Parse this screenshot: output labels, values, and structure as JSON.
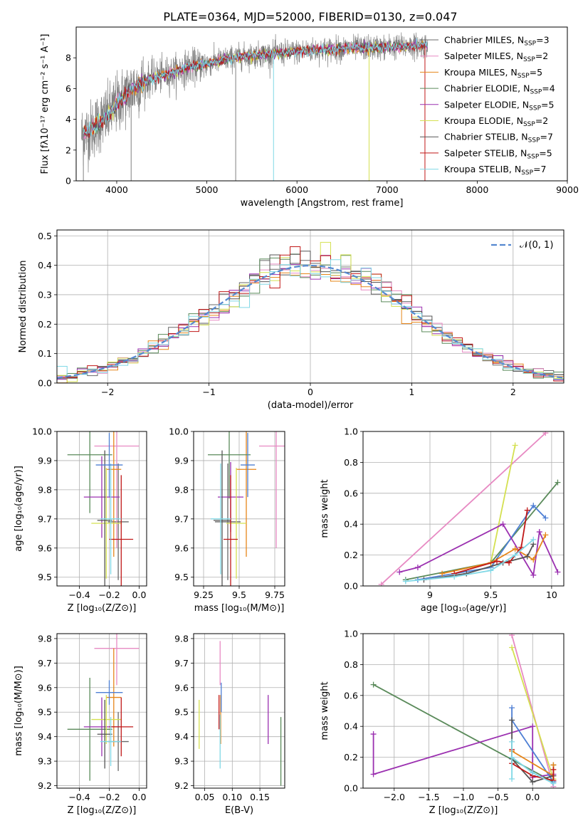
{
  "figure": {
    "title": "PLATE=0364, MJD=52000, FIBERID=0130, z=0.047"
  },
  "colors": {
    "c1": "#696969",
    "c2": "#e78ac3",
    "c3": "#e6861a",
    "c4": "#5a8a5a",
    "c5": "#9b30b0",
    "c6": "#d4e050",
    "c7": "#555555",
    "c8": "#c01818",
    "c9": "#80d8e6",
    "gray": "#808080",
    "norm": "#5588d0",
    "blue": "#4e7fd4"
  },
  "chart_data": [
    {
      "type": "line",
      "id": "spectrum",
      "xlabel": "wavelength [Angstrom, rest frame]",
      "ylabel": "Flux [fλ10⁻¹⁷ erg cm⁻² s⁻¹ A⁻¹]",
      "xlim": [
        3550,
        9000
      ],
      "ylim": [
        0,
        10
      ],
      "xticks": [
        4000,
        5000,
        6000,
        7000,
        8000,
        9000
      ],
      "yticks": [
        0,
        2,
        4,
        6,
        8
      ],
      "grid": false,
      "legend_position": "right",
      "continuum_x": [
        3600,
        3700,
        3800,
        3900,
        4000,
        4100,
        4200,
        4300,
        4400,
        4600,
        4800,
        5000,
        5200,
        5400,
        5600,
        5800,
        6000,
        6200,
        6500,
        6800,
        7000,
        7200,
        7400
      ],
      "continuum_y": [
        3.0,
        3.2,
        3.8,
        4.2,
        5.0,
        5.6,
        6.1,
        6.4,
        6.7,
        7.0,
        7.4,
        7.6,
        7.9,
        8.1,
        8.2,
        8.3,
        8.4,
        8.5,
        8.6,
        8.65,
        8.7,
        8.75,
        8.8
      ],
      "data_x_range": [
        3610,
        7450
      ],
      "legend": [
        {
          "label": "Chabrier MILES, N_SSP=3",
          "color": "c1"
        },
        {
          "label": "Salpeter MILES, N_SSP=2",
          "color": "c2"
        },
        {
          "label": "Kroupa MILES, N_SSP=5",
          "color": "c3"
        },
        {
          "label": "Chabrier ELODIE, N_SSP=4",
          "color": "c4"
        },
        {
          "label": "Salpeter ELODIE, N_SSP=5",
          "color": "c5"
        },
        {
          "label": "Kroupa ELODIE, N_SSP=2",
          "color": "c6"
        },
        {
          "label": "Chabrier STELIB, N_SSP=7",
          "color": "c7"
        },
        {
          "label": "Salpeter STELIB, N_SSP=5",
          "color": "c8"
        },
        {
          "label": "Kroupa STELIB, N_SSP=7",
          "color": "c9"
        }
      ]
    },
    {
      "type": "histogram",
      "id": "residuals",
      "xlabel": "(data-model)/error",
      "ylabel": "Normed distribution",
      "xlim": [
        -2.5,
        2.5
      ],
      "ylim": [
        0,
        0.52
      ],
      "xticks": [
        -2,
        -1,
        0,
        1,
        2
      ],
      "yticks": [
        0.0,
        0.1,
        0.2,
        0.3,
        0.4,
        0.5
      ],
      "grid": true,
      "legend": [
        {
          "label": "𝒩(0, 1)",
          "color": "norm"
        }
      ],
      "bin_width": 0.1,
      "series_colors": [
        "c1",
        "c2",
        "c3",
        "c4",
        "c5",
        "c6",
        "c7",
        "c8",
        "c9"
      ]
    },
    {
      "type": "errorbar",
      "id": "age_vs_Z",
      "xlabel": "Z [log₁₀(Z/Z⊙)]",
      "ylabel": "age  [log₁₀(age/yr)]",
      "xlim": [
        -0.55,
        0.05
      ],
      "ylim": [
        9.47,
        10.0
      ],
      "xticks": [
        -0.4,
        -0.2,
        0.0
      ],
      "xticklabels": [
        "−0.4",
        "−0.2",
        "0.0"
      ],
      "yticks": [
        9.5,
        9.6,
        9.7,
        9.8,
        9.9,
        10.0
      ],
      "grid": true,
      "points": [
        {
          "x": -0.14,
          "y": 9.69,
          "xerr": 0.07,
          "yerr": 0.2,
          "color": "c1"
        },
        {
          "x": -0.15,
          "y": 9.95,
          "xerr": 0.15,
          "yerr": 0.35,
          "color": "c2"
        },
        {
          "x": -0.17,
          "y": 9.87,
          "xerr": 0.05,
          "yerr": 0.3,
          "color": "c3"
        },
        {
          "x": -0.33,
          "y": 9.92,
          "xerr": 0.15,
          "yerr": 0.2,
          "color": "c4"
        },
        {
          "x": -0.25,
          "y": 9.775,
          "xerr": 0.12,
          "yerr": 0.14,
          "color": "c5"
        },
        {
          "x": -0.22,
          "y": 9.685,
          "xerr": 0.1,
          "yerr": 0.19,
          "color": "c6"
        },
        {
          "x": -0.23,
          "y": 9.695,
          "xerr": 0.05,
          "yerr": 0.24,
          "color": "c7"
        },
        {
          "x": -0.12,
          "y": 9.63,
          "xerr": 0.08,
          "yerr": 0.22,
          "color": "c8"
        },
        {
          "x": -0.19,
          "y": 9.7,
          "xerr": 0.07,
          "yerr": 0.19,
          "color": "c9"
        },
        {
          "x": -0.2,
          "y": 9.885,
          "xerr": 0.09,
          "yerr": 0.11,
          "color": "blue"
        }
      ]
    },
    {
      "type": "errorbar",
      "id": "age_vs_mass",
      "xlabel": "mass [log₁₀(M/M⊙)]",
      "ylabel": "",
      "xlim": [
        9.18,
        9.82
      ],
      "ylim": [
        9.47,
        10.0
      ],
      "xticks": [
        9.25,
        9.5,
        9.75
      ],
      "yticks": [
        9.5,
        9.6,
        9.7,
        9.8,
        9.9,
        10.0
      ],
      "grid": true,
      "points": [
        {
          "x": 9.42,
          "y": 9.69,
          "xerr": 0.09,
          "yerr": 0.2,
          "color": "c1"
        },
        {
          "x": 9.76,
          "y": 9.95,
          "xerr": 0.12,
          "yerr": 0.35,
          "color": "c2"
        },
        {
          "x": 9.55,
          "y": 9.87,
          "xerr": 0.07,
          "yerr": 0.3,
          "color": "c3"
        },
        {
          "x": 9.43,
          "y": 9.92,
          "xerr": 0.15,
          "yerr": 0.15,
          "color": "c4"
        },
        {
          "x": 9.44,
          "y": 9.775,
          "xerr": 0.09,
          "yerr": 0.12,
          "color": "c5"
        },
        {
          "x": 9.48,
          "y": 9.685,
          "xerr": 0.07,
          "yerr": 0.19,
          "color": "c6"
        },
        {
          "x": 9.38,
          "y": 9.695,
          "xerr": 0.06,
          "yerr": 0.24,
          "color": "c7"
        },
        {
          "x": 9.44,
          "y": 9.63,
          "xerr": 0.05,
          "yerr": 0.22,
          "color": "c8"
        },
        {
          "x": 9.37,
          "y": 9.7,
          "xerr": 0.07,
          "yerr": 0.19,
          "color": "c9"
        },
        {
          "x": 9.56,
          "y": 9.885,
          "xerr": 0.05,
          "yerr": 0.11,
          "color": "blue"
        }
      ]
    },
    {
      "type": "line",
      "id": "weight_vs_age",
      "xlabel": "age  [log₁₀(age/yr)]",
      "ylabel": "mass weight",
      "xlim": [
        8.45,
        10.1
      ],
      "ylim": [
        0,
        1.0
      ],
      "xticks": [
        9.0,
        9.5,
        10.0
      ],
      "yticks": [
        0.0,
        0.2,
        0.4,
        0.6,
        0.8,
        1.0
      ],
      "grid": true,
      "series": [
        {
          "color": "c2",
          "x": [
            8.6,
            9.95
          ],
          "y": [
            0.01,
            0.99
          ]
        },
        {
          "color": "c6",
          "x": [
            9.5,
            9.7
          ],
          "y": [
            0.15,
            0.91
          ]
        },
        {
          "color": "c4",
          "x": [
            8.8,
            9.5,
            10.05
          ],
          "y": [
            0.04,
            0.15,
            0.67
          ]
        },
        {
          "color": "blue",
          "x": [
            8.9,
            9.5,
            9.85,
            9.95
          ],
          "y": [
            0.04,
            0.12,
            0.52,
            0.44
          ]
        },
        {
          "color": "c5",
          "x": [
            8.75,
            8.9,
            9.6,
            9.85,
            9.9,
            10.05
          ],
          "y": [
            0.09,
            0.12,
            0.4,
            0.07,
            0.35,
            0.09
          ]
        },
        {
          "color": "c3",
          "x": [
            9.1,
            9.5,
            9.7,
            9.85,
            9.95
          ],
          "y": [
            0.08,
            0.15,
            0.24,
            0.17,
            0.33
          ]
        },
        {
          "color": "c7",
          "x": [
            8.95,
            9.3,
            9.6,
            9.8,
            9.85
          ],
          "y": [
            0.04,
            0.08,
            0.15,
            0.19,
            0.27
          ]
        },
        {
          "color": "c8",
          "x": [
            9.2,
            9.55,
            9.65,
            9.75,
            9.8
          ],
          "y": [
            0.08,
            0.16,
            0.15,
            0.25,
            0.49
          ]
        },
        {
          "color": "c9",
          "x": [
            8.8,
            9.2,
            9.5,
            9.7,
            9.85
          ],
          "y": [
            0.03,
            0.06,
            0.1,
            0.2,
            0.3
          ]
        }
      ]
    },
    {
      "type": "errorbar",
      "id": "mass_vs_Z",
      "xlabel": "Z [log₁₀(Z/Z⊙)]",
      "ylabel": "mass [log₁₀(M/M⊙)]",
      "xlim": [
        -0.55,
        0.05
      ],
      "ylim": [
        9.19,
        9.82
      ],
      "xticks": [
        -0.4,
        -0.2,
        0.0
      ],
      "xticklabels": [
        "−0.4",
        "−0.2",
        "0.0"
      ],
      "yticks": [
        9.2,
        9.3,
        9.4,
        9.5,
        9.6,
        9.7,
        9.8
      ],
      "grid": true,
      "points": [
        {
          "x": -0.14,
          "y": 9.38,
          "xerr": 0.07,
          "yerr": 0.12,
          "color": "c1"
        },
        {
          "x": -0.15,
          "y": 9.76,
          "xerr": 0.15,
          "yerr": 0.15,
          "color": "c2"
        },
        {
          "x": -0.17,
          "y": 9.56,
          "xerr": 0.05,
          "yerr": 0.2,
          "color": "c3"
        },
        {
          "x": -0.33,
          "y": 9.43,
          "xerr": 0.15,
          "yerr": 0.21,
          "color": "c4"
        },
        {
          "x": -0.25,
          "y": 9.44,
          "xerr": 0.12,
          "yerr": 0.12,
          "color": "c5"
        },
        {
          "x": -0.22,
          "y": 9.47,
          "xerr": 0.1,
          "yerr": 0.1,
          "color": "c6"
        },
        {
          "x": -0.23,
          "y": 9.41,
          "xerr": 0.05,
          "yerr": 0.14,
          "color": "c7"
        },
        {
          "x": -0.12,
          "y": 9.44,
          "xerr": 0.08,
          "yerr": 0.12,
          "color": "c8"
        },
        {
          "x": -0.19,
          "y": 9.38,
          "xerr": 0.07,
          "yerr": 0.1,
          "color": "c9"
        },
        {
          "x": -0.2,
          "y": 9.58,
          "xerr": 0.09,
          "yerr": 0.05,
          "color": "blue"
        }
      ]
    },
    {
      "type": "errorbar",
      "id": "mass_vs_ebv",
      "xlabel": "E(B-V)",
      "ylabel": "",
      "xlim": [
        0.03,
        0.195
      ],
      "ylim": [
        9.19,
        9.82
      ],
      "xticks": [
        0.05,
        0.1,
        0.15
      ],
      "xticklabels": [
        "0.05",
        "0.10",
        "0.15"
      ],
      "yticks": [
        9.2,
        9.3,
        9.4,
        9.5,
        9.6,
        9.7,
        9.8
      ],
      "grid": true,
      "points": [
        {
          "x": 0.078,
          "y": 9.7,
          "xerr": 0,
          "yerr": 0.09,
          "color": "c2"
        },
        {
          "x": 0.079,
          "y": 9.47,
          "xerr": 0,
          "yerr": 0.1,
          "color": "c3"
        },
        {
          "x": 0.188,
          "y": 9.34,
          "xerr": 0,
          "yerr": 0.14,
          "color": "c4"
        },
        {
          "x": 0.165,
          "y": 9.47,
          "xerr": 0,
          "yerr": 0.1,
          "color": "c5"
        },
        {
          "x": 0.04,
          "y": 9.45,
          "xerr": 0,
          "yerr": 0.1,
          "color": "c6"
        },
        {
          "x": 0.076,
          "y": 9.5,
          "xerr": 0,
          "yerr": 0.07,
          "color": "c8"
        },
        {
          "x": 0.078,
          "y": 9.38,
          "xerr": 0,
          "yerr": 0.11,
          "color": "c9"
        },
        {
          "x": 0.08,
          "y": 9.56,
          "xerr": 0,
          "yerr": 0.06,
          "color": "blue"
        }
      ]
    },
    {
      "type": "line",
      "id": "weight_vs_Z",
      "xlabel": "Z [log₁₀(Z/Z⊙)]",
      "ylabel": "mass weight",
      "xlim": [
        -2.45,
        0.45
      ],
      "ylim": [
        0,
        1.0
      ],
      "xticks": [
        -2.0,
        -1.5,
        -1.0,
        -0.5,
        0.0
      ],
      "xticklabels": [
        "−2.0",
        "−1.5",
        "−1.0",
        "−0.5",
        "0.0"
      ],
      "yticks": [
        0.0,
        0.2,
        0.4,
        0.6,
        0.8,
        1.0
      ],
      "grid": true,
      "series": [
        {
          "color": "c2",
          "x": [
            -0.3,
            0.3
          ],
          "y": [
            0.99,
            0.01
          ]
        },
        {
          "color": "c6",
          "x": [
            -0.3,
            0.3
          ],
          "y": [
            0.91,
            0.06
          ]
        },
        {
          "color": "c4",
          "x": [
            -2.3,
            0.3,
            0.3
          ],
          "y": [
            0.67,
            0.04,
            0.15
          ]
        },
        {
          "color": "c5",
          "x": [
            -2.3,
            -2.3,
            0.0,
            0.0,
            0.3
          ],
          "y": [
            0.35,
            0.09,
            0.4,
            0.07,
            0.09
          ]
        },
        {
          "color": "blue",
          "x": [
            -0.3,
            -0.3,
            0.3
          ],
          "y": [
            0.52,
            0.44,
            0.04
          ]
        },
        {
          "color": "c3",
          "x": [
            -0.3,
            0.3,
            0.3
          ],
          "y": [
            0.24,
            0.08,
            0.15
          ]
        },
        {
          "color": "c7",
          "x": [
            -0.3,
            -0.3,
            0.0,
            0.3
          ],
          "y": [
            0.44,
            0.19,
            0.04,
            0.08
          ]
        },
        {
          "color": "c8",
          "x": [
            -0.3,
            -0.3,
            0.0,
            0.3,
            0.3
          ],
          "y": [
            0.25,
            0.16,
            0.08,
            0.05,
            0.12
          ]
        },
        {
          "color": "c9",
          "x": [
            -0.3,
            -0.3,
            -0.3,
            0.0,
            0.3
          ],
          "y": [
            0.3,
            0.06,
            0.2,
            0.1,
            0.03
          ]
        }
      ]
    }
  ]
}
